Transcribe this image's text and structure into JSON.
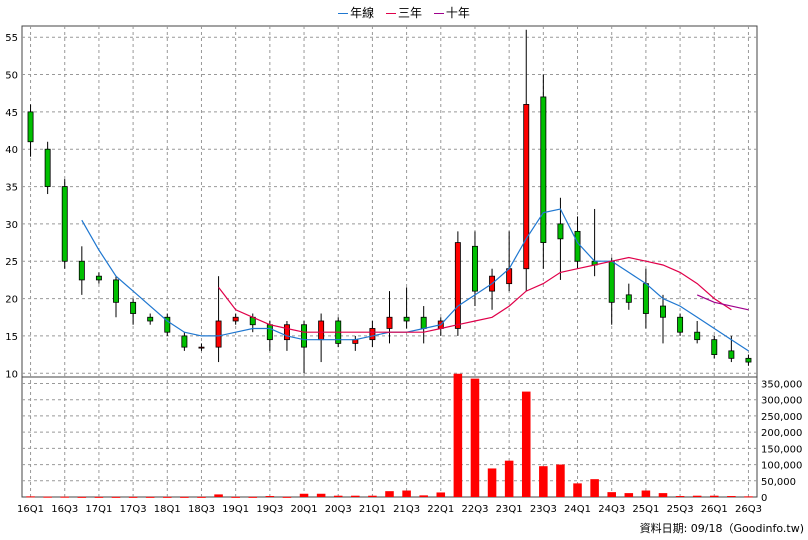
{
  "chart_data": {
    "type": "candlestick",
    "legend": [
      {
        "name": "年線",
        "color": "#1f77d0"
      },
      {
        "name": "三年",
        "color": "#e0004a"
      },
      {
        "name": "十年",
        "color": "#a0008c"
      }
    ],
    "x_ticks": [
      "16Q1",
      "16Q3",
      "17Q1",
      "17Q3",
      "18Q1",
      "18Q3",
      "19Q1",
      "19Q3",
      "20Q1",
      "20Q3",
      "21Q1",
      "21Q3",
      "22Q1",
      "22Q3",
      "23Q1",
      "23Q3",
      "24Q1",
      "24Q3",
      "25Q1",
      "25Q3",
      "26Q1",
      "26Q3"
    ],
    "price_ticks": [
      10,
      15,
      20,
      25,
      30,
      35,
      40,
      45,
      50,
      55
    ],
    "price_range": [
      9.5,
      56.5
    ],
    "volume_ticks": [
      "0",
      "50,000",
      "100,000",
      "150,000",
      "200,000",
      "250,000",
      "300,000",
      "350,000"
    ],
    "volume_range": [
      0,
      370000
    ],
    "candles": [
      [
        45,
        41,
        46,
        39
      ],
      [
        40,
        35,
        41,
        34
      ],
      [
        35,
        25,
        36,
        24
      ],
      [
        25,
        22.5,
        27,
        20.5
      ],
      [
        23,
        22.5,
        23.5,
        22
      ],
      [
        22.5,
        19.5,
        23,
        17.5
      ],
      [
        19.5,
        18,
        20,
        16.5
      ],
      [
        17.5,
        17,
        18,
        16.5
      ],
      [
        17.5,
        15.5,
        18,
        15
      ],
      [
        15,
        13.5,
        15.5,
        13
      ],
      [
        13.5,
        13.5,
        14,
        13
      ],
      [
        13.5,
        17,
        23,
        11.5
      ],
      [
        17,
        17.5,
        18,
        16.5
      ],
      [
        17.5,
        16.5,
        18,
        15.5
      ],
      [
        16.5,
        14.5,
        17,
        13
      ],
      [
        14.5,
        16.5,
        17,
        13
      ],
      [
        16.5,
        13.5,
        17,
        10
      ],
      [
        14.5,
        17,
        18,
        11.5
      ],
      [
        17,
        14,
        17.5,
        13.5
      ],
      [
        14,
        14.5,
        15,
        13
      ],
      [
        14.5,
        16,
        17,
        13.5
      ],
      [
        16,
        17.5,
        21,
        14
      ],
      [
        17.5,
        17,
        21.5,
        16
      ],
      [
        17.5,
        16,
        19,
        14
      ],
      [
        16,
        17,
        17.5,
        15
      ],
      [
        16,
        27.5,
        29,
        15
      ],
      [
        27,
        21,
        29,
        19
      ],
      [
        21,
        23,
        24,
        18.5
      ],
      [
        22,
        24,
        29,
        21
      ],
      [
        24,
        46,
        56,
        21
      ],
      [
        47,
        27.5,
        50,
        24
      ],
      [
        30,
        28,
        33.5,
        22.5
      ],
      [
        29,
        25,
        31,
        24
      ],
      [
        25,
        24.5,
        32,
        23
      ],
      [
        25,
        19.5,
        25.5,
        16.5
      ],
      [
        20.5,
        19.5,
        22,
        18.5
      ],
      [
        22,
        18,
        24,
        16
      ],
      [
        19,
        17.5,
        20.5,
        14
      ],
      [
        17.5,
        15.5,
        18,
        15
      ],
      [
        15.5,
        14.5,
        17,
        14
      ],
      [
        14.5,
        12.5,
        15,
        12
      ],
      [
        13,
        12,
        15,
        11.5
      ],
      [
        12,
        11.5,
        12.5,
        11
      ]
    ],
    "volume": [
      2000,
      1000,
      1000,
      500,
      500,
      500,
      500,
      500,
      500,
      500,
      500,
      8000,
      500,
      500,
      3000,
      500,
      10000,
      10000,
      4000,
      4000,
      4000,
      18000,
      20000,
      5000,
      14000,
      380000,
      365000,
      88000,
      112000,
      325000,
      95000,
      100000,
      42000,
      55000,
      15000,
      12000,
      20000,
      12000,
      3000,
      4000,
      4000,
      3000,
      2000
    ],
    "ma_year": [
      null,
      null,
      null,
      30.5,
      26.5,
      23,
      21,
      19,
      17,
      15.5,
      15,
      15,
      15.5,
      16,
      16,
      15,
      14.5,
      14.5,
      14.5,
      14.5,
      15,
      15.5,
      15.5,
      16,
      16.5,
      19,
      20.5,
      22,
      24,
      28,
      31.5,
      32,
      27.5,
      25,
      25,
      23.5,
      22,
      20,
      19,
      17.5,
      16,
      14.5,
      13
    ],
    "ma_3year": [
      null,
      null,
      null,
      null,
      null,
      null,
      null,
      null,
      null,
      null,
      null,
      21.5,
      18.5,
      17.5,
      16.5,
      16,
      15.5,
      15.5,
      15.5,
      15.5,
      15.5,
      15.5,
      15.5,
      15.5,
      16,
      16.5,
      17,
      17.5,
      19,
      21,
      22,
      23.5,
      24,
      24.5,
      25,
      25.5,
      25,
      24.5,
      23.5,
      22,
      20,
      18.5,
      null
    ],
    "ma_10year": [
      null,
      null,
      null,
      null,
      null,
      null,
      null,
      null,
      null,
      null,
      null,
      null,
      null,
      null,
      null,
      null,
      null,
      null,
      null,
      null,
      null,
      null,
      null,
      null,
      null,
      null,
      null,
      null,
      null,
      null,
      null,
      null,
      null,
      null,
      null,
      null,
      null,
      null,
      null,
      20.5,
      19.5,
      19,
      18.5
    ]
  },
  "footer": "資料日期: 09/18（Goodinfo.tw)"
}
